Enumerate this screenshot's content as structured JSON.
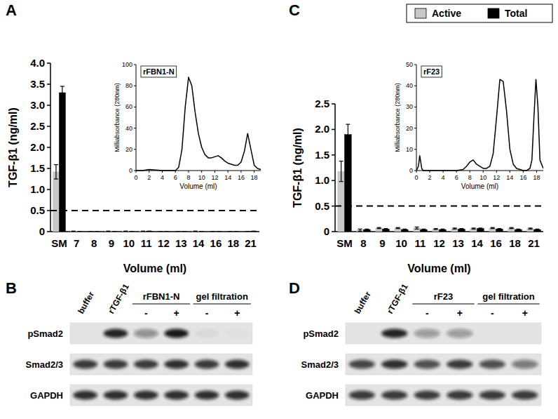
{
  "chart_data": [
    {
      "type": "bar",
      "title": "A",
      "y_label": "TGF-β1 (ng/ml)",
      "x_label": "Volume (ml)",
      "categories": [
        "SM",
        "7",
        "8",
        "9",
        "10",
        "11",
        "12",
        "13",
        "14",
        "16",
        "18",
        "21"
      ],
      "series": [
        {
          "name": "Active",
          "color": "#c8c8c8",
          "values": [
            1.42,
            0.01,
            0,
            0.01,
            0.01,
            0.01,
            0,
            0,
            0.01,
            0,
            0,
            0
          ],
          "errors": [
            0.17,
            0,
            0,
            0,
            0,
            0,
            0,
            0,
            0,
            0,
            0,
            0
          ]
        },
        {
          "name": "Total",
          "color": "#000000",
          "values": [
            3.3,
            0,
            0,
            0,
            0,
            0.01,
            0,
            0,
            0,
            0,
            0,
            0.01
          ],
          "errors": [
            0.15,
            0,
            0,
            0,
            0,
            0,
            0,
            0,
            0,
            0,
            0,
            0
          ]
        }
      ],
      "ylim": [
        0,
        4
      ],
      "yticks": [
        0,
        0.5,
        {
          "value": 1,
          "label": "1.0"
        },
        1.5,
        {
          "value": 2,
          "label": "2.0"
        },
        2.5,
        {
          "value": 3,
          "label": "3.0"
        },
        3.5,
        {
          "value": 4,
          "label": "4.0"
        }
      ],
      "reference_line": 0.5
    },
    {
      "type": "line",
      "title": "rFBN1-N",
      "y_label": "Milliabsorbance (280nm)",
      "x_label": "Volume (ml)",
      "color": "#000000",
      "x": [
        0,
        1,
        2,
        3,
        4,
        5,
        5.5,
        6,
        6.5,
        7,
        7.5,
        8,
        8.5,
        9,
        9.5,
        10,
        10.5,
        11,
        11.5,
        12,
        12.5,
        13,
        13.5,
        14,
        14.5,
        15,
        15.5,
        16,
        16.5,
        17,
        17.5,
        18,
        18.5,
        19
      ],
      "values": [
        0,
        0,
        1,
        0.5,
        0,
        0,
        0,
        0,
        3,
        20,
        60,
        88,
        80,
        55,
        35,
        22,
        15,
        12,
        12,
        13,
        14,
        12,
        9,
        7,
        6,
        5,
        5,
        8,
        18,
        35,
        20,
        5,
        2,
        1
      ],
      "xlim": [
        0,
        19
      ],
      "xticks": [
        0,
        2,
        4,
        6,
        8,
        10,
        12,
        14,
        16,
        18
      ],
      "ylim": [
        0,
        100
      ],
      "yticks": [
        0,
        20,
        40,
        60,
        80,
        100
      ]
    },
    {
      "type": "bar",
      "title": "C",
      "y_label": "TGF-β1 (ng/ml)",
      "x_label": "Volume (ml)",
      "legend": "top right",
      "categories": [
        "SM",
        "8",
        "9",
        "10",
        "11",
        "12",
        "13",
        "14",
        "16",
        "18",
        "21"
      ],
      "series": [
        {
          "name": "Active",
          "color": "#c8c8c8",
          "values": [
            1.18,
            0.03,
            0.07,
            0.07,
            0.07,
            0.05,
            0.06,
            0.06,
            0.07,
            0.07,
            0.06
          ],
          "errors": [
            0.2,
            0.02,
            0.01,
            0.01,
            0.02,
            0.01,
            0.01,
            0.01,
            0.01,
            0.01,
            0.01
          ]
        },
        {
          "name": "Total",
          "color": "#000000",
          "values": [
            1.9,
            0.04,
            0.05,
            0.04,
            0.04,
            0.04,
            0.05,
            0.06,
            0.05,
            0.04,
            0.04
          ],
          "errors": [
            0.2,
            0.01,
            0.01,
            0.01,
            0.01,
            0.01,
            0.01,
            0.01,
            0.01,
            0.01,
            0.01
          ]
        }
      ],
      "ylim": [
        0,
        2.5
      ],
      "yticks": [
        0,
        0.5,
        {
          "value": 1,
          "label": "1.0"
        },
        1.5,
        {
          "value": 2,
          "label": "2.0"
        },
        2.5
      ],
      "reference_line": 0.5
    },
    {
      "type": "line",
      "title": "rF23",
      "y_label": "Milliabsorbance (280nm)",
      "x_label": "Volume (ml)",
      "color": "#000000",
      "x": [
        0,
        0.3,
        0.5,
        0.8,
        1,
        2,
        4,
        6,
        7,
        7.5,
        8,
        8.5,
        9,
        9.5,
        10,
        10.5,
        11,
        11.5,
        12,
        12.5,
        13,
        13.5,
        14,
        14.5,
        15,
        16,
        16.5,
        17,
        17.3,
        17.6,
        17.9,
        18.2,
        18.5,
        19
      ],
      "values": [
        0,
        2,
        7,
        1,
        0,
        0,
        0,
        0,
        0.5,
        2,
        4,
        5,
        3,
        2,
        1,
        1,
        2,
        8,
        25,
        43,
        42,
        28,
        10,
        3,
        1,
        0,
        0,
        1,
        5,
        25,
        43,
        30,
        5,
        1
      ],
      "xlim": [
        0,
        19
      ],
      "xticks": [
        0,
        2,
        4,
        6,
        8,
        10,
        12,
        14,
        16,
        18
      ],
      "ylim": [
        0,
        50
      ],
      "yticks": [
        0,
        10,
        20,
        30,
        40,
        50
      ]
    }
  ],
  "blots": [
    {
      "title": "B",
      "lane_labels": [
        "buffer",
        "rTGF-β1",
        "-",
        "+",
        "-",
        "+"
      ],
      "groups": [
        {
          "label": "rFBN1-N",
          "lanes": [
            2,
            3
          ]
        },
        {
          "label": "gel filtration",
          "lanes": [
            4,
            5
          ]
        }
      ],
      "rows": [
        {
          "label": "pSmad2",
          "bands": [
            0,
            0.9,
            0.4,
            0.95,
            0.05,
            0.02
          ]
        },
        {
          "label": "Smad2/3",
          "bands": [
            0.8,
            0.8,
            0.8,
            0.85,
            0.8,
            0.85
          ]
        },
        {
          "label": "GAPDH",
          "bands": [
            0.85,
            0.85,
            0.85,
            0.85,
            0.85,
            0.85
          ]
        }
      ]
    },
    {
      "title": "D",
      "lane_labels": [
        "buffer",
        "rTGF-β1",
        "-",
        "+",
        "-",
        "+"
      ],
      "groups": [
        {
          "label": "rF23",
          "lanes": [
            2,
            3
          ]
        },
        {
          "label": "gel filtration",
          "lanes": [
            4,
            5
          ]
        }
      ],
      "rows": [
        {
          "label": "pSmad2",
          "bands": [
            0,
            0.9,
            0.35,
            0.35,
            0,
            0
          ]
        },
        {
          "label": "Smad2/3",
          "bands": [
            0.75,
            0.85,
            0.7,
            0.8,
            0.7,
            0.5
          ]
        },
        {
          "label": "GAPDH",
          "bands": [
            0.8,
            0.8,
            0.8,
            0.8,
            0.8,
            0.8
          ]
        }
      ]
    }
  ]
}
